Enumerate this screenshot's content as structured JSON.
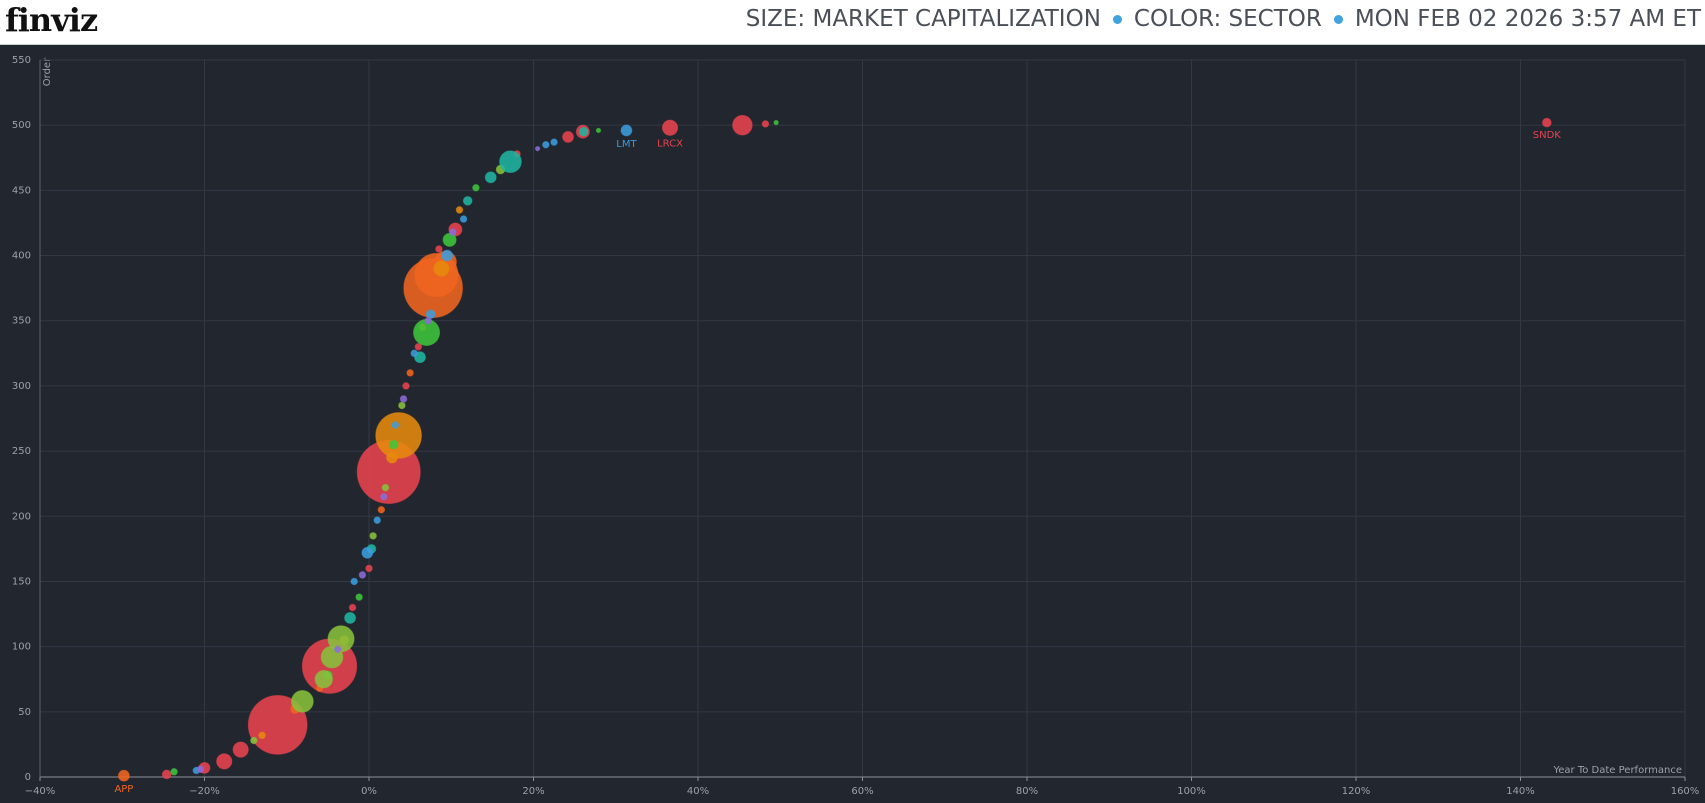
{
  "header": {
    "logo": "finviz",
    "items": [
      "SIZE: MARKET CAPITALIZATION",
      "COLOR: SECTOR",
      "MON FEB 02 2026 3:57 AM ET"
    ]
  },
  "chart_data": {
    "type": "bubble",
    "x_label": "Year To Date Performance",
    "y_label": "Order",
    "xlim": [
      -40,
      160
    ],
    "ylim": [
      0,
      550
    ],
    "xticks": [
      {
        "value": -40,
        "label": "−40%"
      },
      {
        "value": -20,
        "label": "−20%"
      },
      {
        "value": 0,
        "label": "0%"
      },
      {
        "value": 20,
        "label": "20%"
      },
      {
        "value": 40,
        "label": "40%"
      },
      {
        "value": 60,
        "label": "60%"
      },
      {
        "value": 80,
        "label": "80%"
      },
      {
        "value": 100,
        "label": "100%"
      },
      {
        "value": 120,
        "label": "120%"
      },
      {
        "value": 140,
        "label": "140%"
      },
      {
        "value": 160,
        "label": "160%"
      }
    ],
    "yticks": [
      0,
      50,
      100,
      150,
      200,
      250,
      300,
      350,
      400,
      450,
      500,
      550
    ],
    "grid": true,
    "series": [
      {
        "color": "#e8434f",
        "x": [
          -11.1,
          -4.8,
          2.4,
          45.4,
          36.6,
          143.2,
          -24.6,
          -17.6,
          -15.6,
          -20,
          48.2,
          26,
          24.2,
          10.5,
          6,
          0,
          -2,
          18,
          4.5,
          8.5
        ],
        "values": [
          40,
          85,
          234,
          500,
          498,
          502,
          2,
          12,
          21,
          7,
          501,
          495,
          491,
          420,
          330,
          160,
          130,
          478,
          300,
          405
        ],
        "sizes": [
          729,
          625,
          841,
          81,
          49,
          16,
          16,
          49,
          49,
          25,
          9,
          36,
          25,
          36,
          9,
          9,
          9,
          9,
          9,
          9
        ],
        "labels": [
          null,
          null,
          null,
          null,
          "LRCX",
          "SNDK",
          null,
          null,
          null,
          null,
          null,
          null,
          null,
          null,
          null,
          null,
          null,
          null,
          null,
          null
        ]
      },
      {
        "color": "#f06520",
        "x": [
          -29.8,
          7.8,
          8.2,
          9.3,
          -9,
          1.5,
          5,
          -6
        ],
        "values": [
          1,
          375,
          385,
          395,
          52,
          205,
          310,
          68
        ],
        "sizes": [
          25,
          729,
          400,
          100,
          16,
          9,
          9,
          9
        ],
        "labels": [
          "APP",
          null,
          null,
          null,
          null,
          null,
          null,
          null
        ]
      },
      {
        "color": "#e68a0c",
        "x": [
          3.6,
          8.8,
          -3,
          2.8,
          -13,
          6.5,
          11
        ],
        "values": [
          262,
          390,
          105,
          245,
          32,
          345,
          435
        ],
        "sizes": [
          441,
          49,
          16,
          25,
          9,
          9,
          9
        ]
      },
      {
        "color": "#3dc53a",
        "x": [
          7,
          -23.7,
          27.9,
          49.5,
          9.8,
          -1.2,
          13,
          3,
          -5
        ],
        "values": [
          341,
          4,
          496,
          502,
          412,
          138,
          452,
          255,
          78
        ],
        "sizes": [
          144,
          9,
          4,
          4,
          36,
          9,
          9,
          16,
          16
        ]
      },
      {
        "color": "#86c23b",
        "x": [
          -3.4,
          -8.1,
          -4.5,
          -5.5,
          16,
          -14,
          0.5,
          4,
          2
        ],
        "values": [
          106,
          58,
          92,
          75,
          466,
          28,
          185,
          285,
          222
        ],
        "sizes": [
          144,
          100,
          100,
          64,
          16,
          9,
          9,
          9,
          9
        ]
      },
      {
        "color": "#1fb5a0",
        "x": [
          17.2,
          6.2,
          14.8,
          12,
          -2.3,
          0.3,
          26.1
        ],
        "values": [
          472,
          322,
          460,
          442,
          122,
          175,
          495
        ],
        "sizes": [
          100,
          25,
          25,
          16,
          25,
          16,
          16
        ]
      },
      {
        "color": "#3b9ddd",
        "x": [
          31.3,
          21.5,
          22.5,
          -0.2,
          -21,
          7.5,
          11.5,
          5.5,
          1,
          3.2,
          -1.8,
          9.5
        ],
        "values": [
          496,
          485,
          487,
          172,
          5,
          355,
          428,
          325,
          197,
          270,
          150,
          400
        ],
        "sizes": [
          25,
          9,
          9,
          25,
          9,
          16,
          9,
          9,
          9,
          9,
          9,
          25
        ],
        "labels": [
          "LMT",
          null,
          null,
          null,
          null,
          null,
          null,
          null,
          null,
          null,
          null,
          null
        ]
      },
      {
        "color": "#8d6bd9",
        "x": [
          -20.5,
          20.5,
          1.8,
          4.2,
          -3.8,
          7.2,
          10.2,
          -0.8
        ],
        "values": [
          6,
          482,
          215,
          290,
          98,
          350,
          418,
          155
        ],
        "sizes": [
          9,
          4,
          9,
          9,
          9,
          9,
          9,
          9
        ]
      }
    ]
  }
}
